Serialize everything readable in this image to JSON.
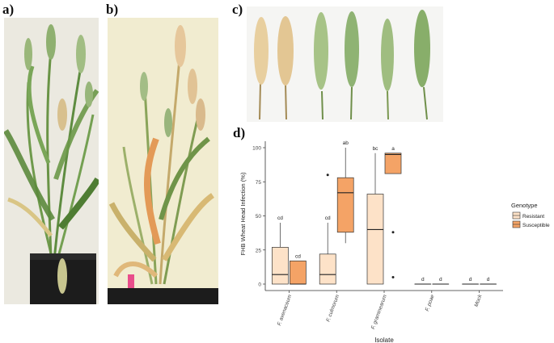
{
  "panels": {
    "a": "a)",
    "b": "b)",
    "c": "c)",
    "d": "d)"
  },
  "colors": {
    "resistant": "#fde2c8",
    "susceptible": "#f4a366",
    "plant_wall_a": "#ebe9e0",
    "plant_wall_b": "#f1ecd0",
    "spike_bg": "#f5f5f3",
    "healthy_green": "#7a9e58",
    "bleached": "#e3c99a"
  },
  "chart_data": {
    "type": "box",
    "ylabel": "FHB Wheat Head Infection (%)",
    "xlabel": "Isolate",
    "ylim": [
      0,
      100
    ],
    "yticks": [
      0,
      25,
      50,
      75,
      100
    ],
    "categories": [
      "F. avenaceum",
      "F. culmorum",
      "F. graminearum",
      "F. poae",
      "Mock"
    ],
    "legend": {
      "title": "Genotype",
      "position": "right",
      "entries": [
        "Resistant",
        "Susceptible"
      ]
    },
    "grid": false,
    "series": [
      {
        "name": "Resistant",
        "boxes": [
          {
            "category": "F. avenaceum",
            "min": 0,
            "q1": 0,
            "median": 7,
            "q3": 27,
            "max": 45,
            "outliers": [],
            "letter": "cd"
          },
          {
            "category": "F. culmorum",
            "min": 0,
            "q1": 0,
            "median": 7,
            "q3": 22,
            "max": 45,
            "outliers": [
              80
            ],
            "letter": "cd"
          },
          {
            "category": "F. graminearum",
            "min": 0,
            "q1": 0,
            "median": 40,
            "q3": 66,
            "max": 96,
            "outliers": [],
            "letter": "bc"
          },
          {
            "category": "F. poae",
            "min": 0,
            "q1": 0,
            "median": 0,
            "q3": 0,
            "max": 0,
            "outliers": [],
            "letter": "d"
          },
          {
            "category": "Mock",
            "min": 0,
            "q1": 0,
            "median": 0,
            "q3": 0,
            "max": 0,
            "outliers": [],
            "letter": "d"
          }
        ]
      },
      {
        "name": "Susceptible",
        "boxes": [
          {
            "category": "F. avenaceum",
            "min": 0,
            "q1": 0,
            "median": 0,
            "q3": 17,
            "max": 17,
            "outliers": [],
            "letter": "cd"
          },
          {
            "category": "F. culmorum",
            "min": 30,
            "q1": 38,
            "median": 67,
            "q3": 78,
            "max": 100,
            "outliers": [],
            "letter": "ab"
          },
          {
            "category": "F. graminearum",
            "min": 81,
            "q1": 81,
            "median": 95,
            "q3": 96,
            "max": 96,
            "outliers": [
              38,
              5
            ],
            "letter": "a"
          },
          {
            "category": "F. poae",
            "min": 0,
            "q1": 0,
            "median": 0,
            "q3": 0,
            "max": 0,
            "outliers": [],
            "letter": "d"
          },
          {
            "category": "Mock",
            "min": 0,
            "q1": 0,
            "median": 0,
            "q3": 0,
            "max": 0,
            "outliers": [],
            "letter": "d"
          }
        ]
      }
    ]
  }
}
